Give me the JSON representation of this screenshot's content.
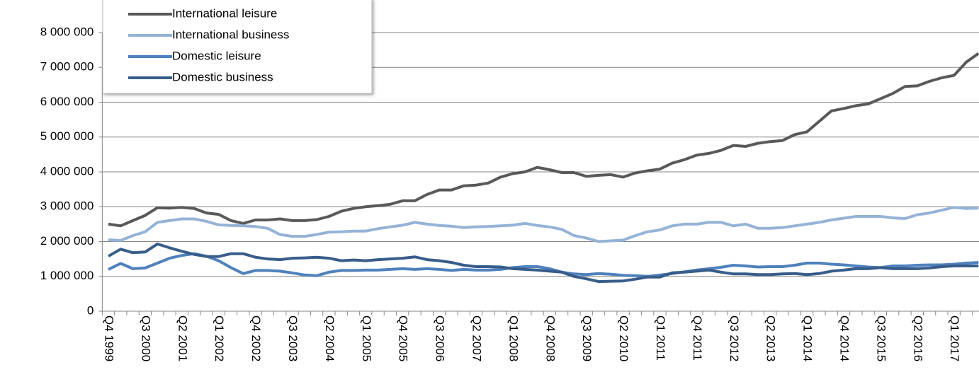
{
  "chart_data": {
    "type": "line",
    "categories": [
      "Q4 1999",
      null,
      null,
      "Q3 2000",
      null,
      null,
      "Q2 2001",
      null,
      null,
      "Q1 2002",
      null,
      null,
      "Q4 2002",
      null,
      null,
      "Q3 2003",
      null,
      null,
      "Q2 2004",
      null,
      null,
      "Q1 2005",
      null,
      null,
      "Q4 2005",
      null,
      null,
      "Q3 2006",
      null,
      null,
      "Q2 2007",
      null,
      null,
      "Q1 2008",
      null,
      null,
      "Q4 2008",
      null,
      null,
      "Q3 2009",
      null,
      null,
      "Q2 2010",
      null,
      null,
      "Q1 2011",
      null,
      null,
      "Q4 2011",
      null,
      null,
      "Q3 2012",
      null,
      null,
      "Q2 2013",
      null,
      null,
      "Q1 2014",
      null,
      null,
      "Q4 2014",
      null,
      null,
      "Q3 2015",
      null,
      null,
      "Q2 2016",
      null,
      null,
      "Q1 2017",
      null,
      null
    ],
    "series": [
      {
        "name": "International leisure",
        "color": "#595959",
        "values": [
          2500000,
          2450000,
          2600000,
          2750000,
          2970000,
          2960000,
          2980000,
          2950000,
          2820000,
          2780000,
          2600000,
          2520000,
          2620000,
          2620000,
          2650000,
          2600000,
          2600000,
          2630000,
          2720000,
          2870000,
          2950000,
          3000000,
          3030000,
          3070000,
          3170000,
          3170000,
          3350000,
          3480000,
          3480000,
          3600000,
          3620000,
          3680000,
          3850000,
          3950000,
          4000000,
          4130000,
          4060000,
          3980000,
          3980000,
          3870000,
          3900000,
          3920000,
          3850000,
          3970000,
          4030000,
          4080000,
          4250000,
          4350000,
          4480000,
          4530000,
          4620000,
          4760000,
          4730000,
          4820000,
          4870000,
          4900000,
          5070000,
          5150000,
          5450000,
          5750000,
          5820000,
          5900000,
          5950000,
          6100000,
          6250000,
          6450000,
          6470000,
          6600000,
          6700000,
          6770000,
          7150000,
          7400000
        ]
      },
      {
        "name": "International business",
        "color": "#95b3d7",
        "values": [
          2050000,
          2030000,
          2170000,
          2280000,
          2550000,
          2600000,
          2650000,
          2650000,
          2580000,
          2480000,
          2460000,
          2450000,
          2430000,
          2380000,
          2200000,
          2150000,
          2150000,
          2200000,
          2270000,
          2280000,
          2300000,
          2300000,
          2370000,
          2420000,
          2470000,
          2550000,
          2500000,
          2460000,
          2440000,
          2400000,
          2420000,
          2430000,
          2450000,
          2470000,
          2520000,
          2460000,
          2420000,
          2350000,
          2170000,
          2100000,
          2000000,
          2020000,
          2040000,
          2170000,
          2280000,
          2330000,
          2450000,
          2500000,
          2500000,
          2550000,
          2550000,
          2450000,
          2500000,
          2380000,
          2380000,
          2400000,
          2450000,
          2500000,
          2550000,
          2620000,
          2670000,
          2720000,
          2720000,
          2720000,
          2680000,
          2660000,
          2770000,
          2820000,
          2900000,
          2980000,
          2950000,
          2960000
        ]
      },
      {
        "name": "Domestic leisure",
        "color": "#4f81bd",
        "values": [
          1200000,
          1370000,
          1220000,
          1240000,
          1380000,
          1520000,
          1600000,
          1650000,
          1580000,
          1450000,
          1250000,
          1080000,
          1170000,
          1170000,
          1150000,
          1100000,
          1040000,
          1020000,
          1120000,
          1170000,
          1170000,
          1180000,
          1180000,
          1200000,
          1220000,
          1200000,
          1220000,
          1200000,
          1170000,
          1200000,
          1180000,
          1180000,
          1200000,
          1250000,
          1280000,
          1280000,
          1220000,
          1120000,
          1070000,
          1050000,
          1080000,
          1060000,
          1030000,
          1020000,
          1000000,
          1040000,
          1080000,
          1130000,
          1180000,
          1220000,
          1260000,
          1320000,
          1300000,
          1270000,
          1280000,
          1280000,
          1320000,
          1380000,
          1380000,
          1350000,
          1330000,
          1300000,
          1270000,
          1250000,
          1300000,
          1300000,
          1320000,
          1330000,
          1330000,
          1350000,
          1380000,
          1400000
        ]
      },
      {
        "name": "Domestic business",
        "color": "#385d8a",
        "values": [
          1580000,
          1780000,
          1680000,
          1700000,
          1930000,
          1820000,
          1720000,
          1630000,
          1570000,
          1570000,
          1650000,
          1650000,
          1550000,
          1500000,
          1480000,
          1520000,
          1530000,
          1550000,
          1520000,
          1450000,
          1470000,
          1450000,
          1480000,
          1500000,
          1520000,
          1560000,
          1480000,
          1450000,
          1400000,
          1320000,
          1280000,
          1280000,
          1270000,
          1220000,
          1200000,
          1180000,
          1150000,
          1120000,
          1000000,
          930000,
          850000,
          860000,
          870000,
          920000,
          980000,
          980000,
          1100000,
          1120000,
          1150000,
          1180000,
          1120000,
          1070000,
          1070000,
          1050000,
          1050000,
          1070000,
          1080000,
          1050000,
          1080000,
          1150000,
          1180000,
          1220000,
          1220000,
          1250000,
          1220000,
          1220000,
          1220000,
          1240000,
          1280000,
          1300000,
          1300000,
          1300000
        ]
      }
    ],
    "ylim": [
      0,
      8000000
    ],
    "yticks": [
      0,
      {
        "value": 1000000,
        "label": "1 000 000"
      },
      {
        "value": 2000000,
        "label": "2 000 000"
      },
      {
        "value": 3000000,
        "label": "3 000 000"
      },
      {
        "value": 4000000,
        "label": "4 000 000"
      },
      {
        "value": 5000000,
        "label": "5 000 000"
      },
      {
        "value": 6000000,
        "label": "6 000 000"
      },
      {
        "value": 7000000,
        "label": "7 000 000"
      },
      {
        "value": 8000000,
        "label": "8 000 000"
      }
    ],
    "grid": true,
    "legend": "top-left"
  }
}
